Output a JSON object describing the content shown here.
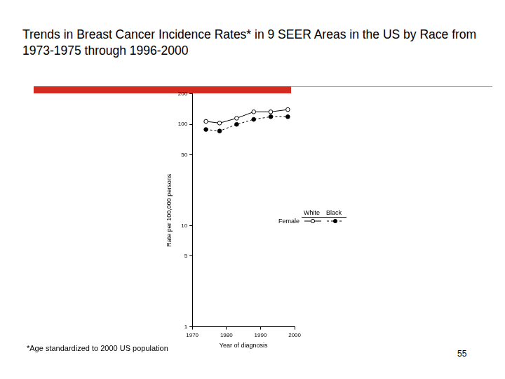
{
  "chart_data": {
    "type": "line",
    "title": "Trends in Breast Cancer Incidence Rates* in 9 SEER Areas in the US by Race from 1973-1975 through 1996-2000",
    "x_label": "Year of diagnosis",
    "y_label": "Rate per 100,000 persons",
    "legend_title": "Female",
    "footnote": "*Age standardized to 2000 US population",
    "page_number": "55",
    "x": [
      1974,
      1978,
      1983,
      1988,
      1993,
      1998
    ],
    "series": [
      {
        "name": "White",
        "color": "#000000",
        "marker": "circle_open",
        "line_style": "solid",
        "values": [
          107,
          103,
          115,
          133,
          133,
          140
        ]
      },
      {
        "name": "Black",
        "color": "#000000",
        "marker": "circle",
        "line_style": "dashed",
        "values": [
          89,
          86,
          100,
          112,
          119,
          119
        ]
      }
    ],
    "log": "y",
    "xlim": [
      1970,
      2000
    ],
    "xticks": [
      1970,
      1980,
      1990,
      2000
    ],
    "ylim": [
      1,
      200
    ],
    "yticks": [
      1,
      5,
      10,
      50,
      100,
      200
    ],
    "grid": false
  }
}
